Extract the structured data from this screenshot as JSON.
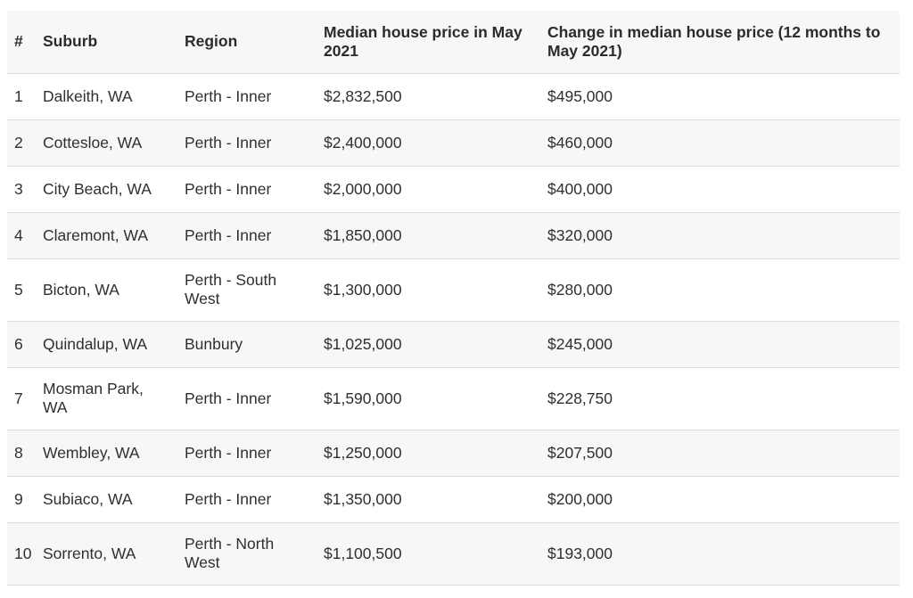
{
  "table": {
    "headers": {
      "num": "#",
      "suburb": "Suburb",
      "region": "Region",
      "median": "Median house price in May 2021",
      "change": "Change in median house price (12 months to May 2021)"
    },
    "rows": [
      {
        "num": "1",
        "suburb": "Dalkeith, WA",
        "region": "Perth - Inner",
        "median": "$2,832,500",
        "change": "$495,000"
      },
      {
        "num": "2",
        "suburb": "Cottesloe, WA",
        "region": "Perth - Inner",
        "median": "$2,400,000",
        "change": "$460,000"
      },
      {
        "num": "3",
        "suburb": "City Beach, WA",
        "region": "Perth - Inner",
        "median": "$2,000,000",
        "change": "$400,000"
      },
      {
        "num": "4",
        "suburb": "Claremont, WA",
        "region": "Perth - Inner",
        "median": "$1,850,000",
        "change": "$320,000"
      },
      {
        "num": "5",
        "suburb": "Bicton, WA",
        "region": "Perth - South West",
        "median": "$1,300,000",
        "change": "$280,000"
      },
      {
        "num": "6",
        "suburb": "Quindalup, WA",
        "region": "Bunbury",
        "median": "$1,025,000",
        "change": "$245,000"
      },
      {
        "num": "7",
        "suburb": "Mosman Park, WA",
        "region": "Perth - Inner",
        "median": "$1,590,000",
        "change": "$228,750"
      },
      {
        "num": "8",
        "suburb": "Wembley, WA",
        "region": "Perth - Inner",
        "median": "$1,250,000",
        "change": "$207,500"
      },
      {
        "num": "9",
        "suburb": "Subiaco, WA",
        "region": "Perth - Inner",
        "median": "$1,350,000",
        "change": "$200,000"
      },
      {
        "num": "10",
        "suburb": "Sorrento, WA",
        "region": "Perth - North West",
        "median": "$1,100,500",
        "change": "$193,000"
      }
    ]
  }
}
